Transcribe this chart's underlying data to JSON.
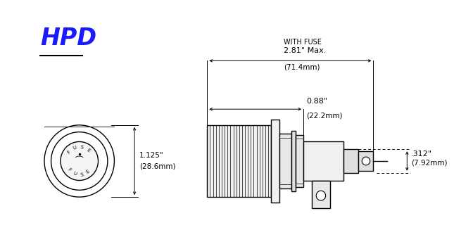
{
  "title": "HPD",
  "title_color": "#1a1aff",
  "title_underline_color": "#000000",
  "bg_color": "#ffffff",
  "line_color": "#000000",
  "dim_line_color": "#000000",
  "label_with_fuse": "WITH FUSE",
  "label_281": "2.81\" Max.",
  "label_714": "(71.4mm)",
  "label_088": "0.88\"",
  "label_222": "(22.2mm)",
  "label_1125": "1.125\"",
  "label_286": "(28.6mm)",
  "label_312": ".312\"",
  "label_792": "(7.92mm)"
}
